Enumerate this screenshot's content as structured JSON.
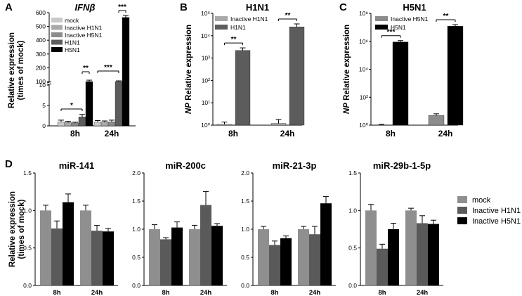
{
  "colors": {
    "mock": "#c8c8c8",
    "inactive_h1n1": "#a9a9a9",
    "inactive_h5n1": "#8c8c8c",
    "h1n1": "#5c5c5c",
    "h5n1": "#000000",
    "d_mock": "#8f8f8f",
    "d_inactive_h1n1": "#5a5a5a",
    "d_inactive_h5n1": "#000000"
  },
  "chart_data": [
    {
      "id": "A",
      "panel_label": "A",
      "type": "bar",
      "title": "IFNβ",
      "ylabel": [
        "Relative expression",
        "(times of mock)"
      ],
      "y_scale": "broken-linear",
      "ylim": [
        0,
        600
      ],
      "break": [
        10,
        100
      ],
      "y_ticks_lower": [
        "0",
        "5",
        "10"
      ],
      "y_ticks_upper": [
        "100",
        "200",
        "300",
        "400",
        "500",
        "600"
      ],
      "categories": [
        "8h",
        "24h"
      ],
      "legend": [
        "mock",
        "Inactive H1N1",
        "Inactive H5N1",
        "H1N1",
        "H5N1"
      ],
      "series": [
        {
          "name": "mock",
          "values": [
            1,
            1
          ],
          "err": [
            0.4,
            0.3
          ]
        },
        {
          "name": "Inactive H1N1",
          "values": [
            0.8,
            0.9
          ],
          "err": [
            0.3,
            0.3
          ]
        },
        {
          "name": "Inactive H5N1",
          "values": [
            0.7,
            1.0
          ],
          "err": [
            0.2,
            0.4
          ]
        },
        {
          "name": "H1N1",
          "values": [
            2.2,
            100
          ],
          "err": [
            0.6,
            5
          ]
        },
        {
          "name": "H5N1",
          "values": [
            100,
            565
          ],
          "err": [
            10,
            15
          ]
        }
      ],
      "significance": [
        {
          "text": "*",
          "cat": 0,
          "from": 0,
          "to": 3
        },
        {
          "text": "**",
          "cat": 0,
          "from": 3,
          "to": 4
        },
        {
          "text": "***",
          "cat": 1,
          "from": 0,
          "to": 3
        },
        {
          "text": "***",
          "cat": 1,
          "from": 3,
          "to": 4
        }
      ]
    },
    {
      "id": "B",
      "panel_label": "B",
      "type": "bar",
      "title": "H1N1",
      "ylabel": [
        "NP",
        " Relative expression"
      ],
      "y_scale": "log",
      "ylim": [
        1,
        100000
      ],
      "y_ticks": [
        "10⁰",
        "10¹",
        "10²",
        "10³",
        "10⁴",
        "10⁵"
      ],
      "categories": [
        "8h",
        "24h"
      ],
      "legend": [
        "Inactive H1N1",
        "H1N1"
      ],
      "series": [
        {
          "name": "Inactive H1N1",
          "values": [
            1.1,
            1.2
          ],
          "err_factor": [
            1.25,
            1.5
          ]
        },
        {
          "name": "H1N1",
          "values": [
            2200,
            25000
          ],
          "err_factor": [
            1.3,
            1.35
          ]
        }
      ],
      "significance": [
        {
          "text": "**",
          "cat": 0
        },
        {
          "text": "**",
          "cat": 1
        }
      ]
    },
    {
      "id": "C",
      "panel_label": "C",
      "type": "bar",
      "title": "H5N1",
      "ylabel": [
        "NP",
        " Relative expression"
      ],
      "y_scale": "log",
      "ylim": [
        1,
        100000000
      ],
      "y_ticks": [
        "10⁰",
        "10²",
        "10⁴",
        "10⁶",
        "10⁸"
      ],
      "categories": [
        "8h",
        "24h"
      ],
      "legend": [
        "Inactive H5N1",
        "H5N1"
      ],
      "series": [
        {
          "name": "Inactive H5N1",
          "values": [
            1.05,
            5
          ],
          "err_factor": [
            1.1,
            1.3
          ]
        },
        {
          "name": "H5N1",
          "values": [
            900000,
            12000000
          ],
          "err_factor": [
            1.25,
            1.3
          ]
        }
      ],
      "significance": [
        {
          "text": "***",
          "cat": 0
        },
        {
          "text": "**",
          "cat": 1
        }
      ]
    },
    {
      "id": "D1",
      "panel_label": "D",
      "type": "bar",
      "title": "miR-141",
      "ylim": [
        0,
        1.5
      ],
      "y_ticks": [
        "0.0",
        "0.5",
        "1.0",
        "1.5"
      ],
      "categories": [
        "8h",
        "24h"
      ],
      "series": [
        {
          "name": "mock",
          "values": [
            1.0,
            1.0
          ],
          "err": [
            0.07,
            0.07
          ]
        },
        {
          "name": "Inactive H1N1",
          "values": [
            0.76,
            0.73
          ],
          "err": [
            0.1,
            0.07
          ]
        },
        {
          "name": "Inactive H5N1",
          "values": [
            1.11,
            0.72
          ],
          "err": [
            0.11,
            0.04
          ]
        }
      ]
    },
    {
      "id": "D2",
      "type": "bar",
      "title": "miR-200c",
      "ylim": [
        0,
        2.0
      ],
      "y_ticks": [
        "0.0",
        "0.5",
        "1.0",
        "1.5",
        "2.0"
      ],
      "categories": [
        "8h",
        "24h"
      ],
      "series": [
        {
          "name": "mock",
          "values": [
            1.0,
            1.0
          ],
          "err": [
            0.08,
            0.07
          ]
        },
        {
          "name": "Inactive H1N1",
          "values": [
            0.82,
            1.43
          ],
          "err": [
            0.03,
            0.24
          ]
        },
        {
          "name": "Inactive H5N1",
          "values": [
            1.03,
            1.06
          ],
          "err": [
            0.1,
            0.04
          ]
        }
      ]
    },
    {
      "id": "D3",
      "type": "bar",
      "title": "miR-21-3p",
      "ylim": [
        0,
        2.0
      ],
      "y_ticks": [
        "0.0",
        "0.5",
        "1.0",
        "1.5",
        "2.0"
      ],
      "categories": [
        "8h",
        "24h"
      ],
      "series": [
        {
          "name": "mock",
          "values": [
            1.0,
            1.0
          ],
          "err": [
            0.05,
            0.05
          ]
        },
        {
          "name": "Inactive H1N1",
          "values": [
            0.72,
            0.91
          ],
          "err": [
            0.07,
            0.14
          ]
        },
        {
          "name": "Inactive H5N1",
          "values": [
            0.84,
            1.46
          ],
          "err": [
            0.04,
            0.12
          ]
        }
      ]
    },
    {
      "id": "D4",
      "type": "bar",
      "title": "miR-29b-1-5p",
      "ylim": [
        0,
        1.5
      ],
      "y_ticks": [
        "0.0",
        "0.5",
        "1.0",
        "1.5"
      ],
      "categories": [
        "8h",
        "24h"
      ],
      "series": [
        {
          "name": "mock",
          "values": [
            1.0,
            1.0
          ],
          "err": [
            0.08,
            0.03
          ]
        },
        {
          "name": "Inactive H1N1",
          "values": [
            0.49,
            0.83
          ],
          "err": [
            0.06,
            0.1
          ]
        },
        {
          "name": "Inactive H5N1",
          "values": [
            0.75,
            0.82
          ],
          "err": [
            0.08,
            0.05
          ]
        }
      ]
    }
  ],
  "panel_d": {
    "ylabel": [
      "Relative expression",
      "(times of mock)"
    ],
    "legend": [
      "mock",
      "Inactive H1N1",
      "Inactive H5N1"
    ]
  }
}
